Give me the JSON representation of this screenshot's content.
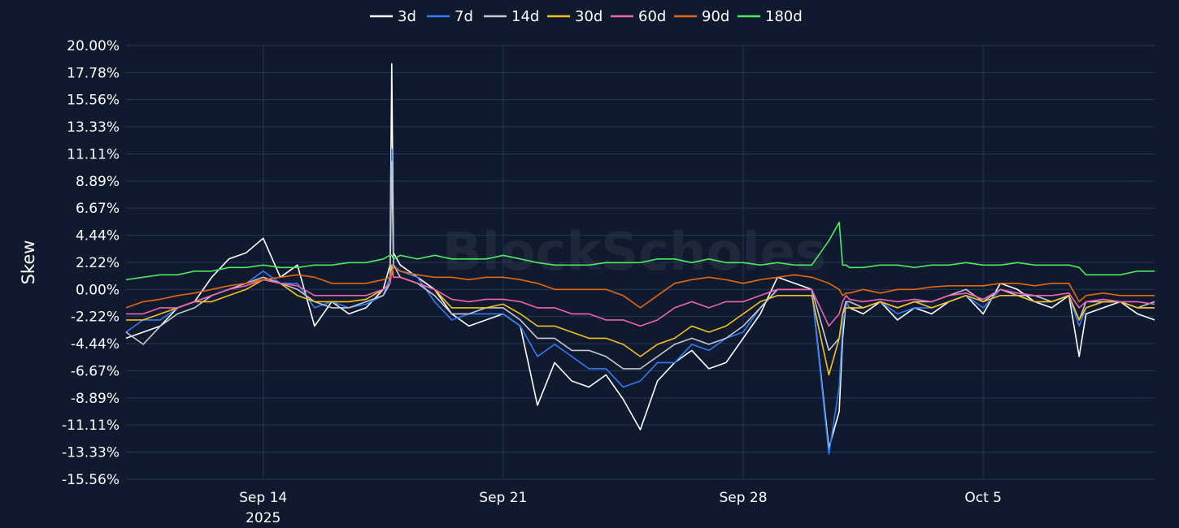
{
  "chart_data": {
    "type": "line",
    "title": "",
    "xlabel": "",
    "ylabel": "Skew",
    "watermark": "BlockScholes",
    "legend_position": "top-center",
    "grid": true,
    "background": "#0f1a2e",
    "x_start_day": 0,
    "x_end_day": 30,
    "x_ticks": [
      {
        "day": 4,
        "label": "Sep 14",
        "sublabel": "2025"
      },
      {
        "day": 11,
        "label": "Sep 21",
        "sublabel": ""
      },
      {
        "day": 18,
        "label": "Sep 28",
        "sublabel": ""
      },
      {
        "day": 25,
        "label": "Oct 5",
        "sublabel": ""
      }
    ],
    "y_ticks": [
      20.0,
      17.78,
      15.56,
      13.33,
      11.11,
      8.89,
      6.67,
      4.44,
      2.22,
      0.0,
      -2.22,
      -4.44,
      -6.67,
      -8.89,
      -11.11,
      -13.33,
      -15.56
    ],
    "y_tick_labels": [
      "20.00%",
      "17.78%",
      "15.56%",
      "13.33%",
      "11.11%",
      "8.89%",
      "6.67%",
      "4.44%",
      "2.22%",
      "0.00%",
      "-2.22%",
      "-4.44%",
      "-6.67%",
      "-8.89%",
      "-11.11%",
      "-13.33%",
      "-15.56%"
    ],
    "ylim": [
      -15.56,
      20.0
    ],
    "series": [
      {
        "name": "3d",
        "color": "#ffffff",
        "x": [
          0,
          0.5,
          1,
          1.5,
          2,
          2.5,
          3,
          3.5,
          4,
          4.5,
          5,
          5.5,
          6,
          6.5,
          7,
          7.5,
          7.7,
          7.75,
          7.8,
          8,
          8.5,
          9,
          9.5,
          10,
          10.5,
          11,
          11.5,
          12,
          12.5,
          13,
          13.5,
          14,
          14.5,
          15,
          15.5,
          16,
          16.5,
          17,
          17.5,
          18,
          18.5,
          19,
          19.5,
          20,
          20.5,
          20.8,
          20.9,
          21,
          21.1,
          21.5,
          22,
          22.5,
          23,
          23.5,
          24,
          24.5,
          25,
          25.5,
          26,
          26.5,
          27,
          27.5,
          27.8,
          28,
          28.5,
          29,
          29.5,
          30
        ],
        "values": [
          -4.0,
          -3.5,
          -3.0,
          -1.5,
          -1.0,
          1.0,
          2.5,
          3.0,
          4.2,
          1.0,
          2.0,
          -3.0,
          -1.0,
          -2.0,
          -1.5,
          0.0,
          2.0,
          18.5,
          3.0,
          2.0,
          1.0,
          0.0,
          -2.0,
          -3.0,
          -2.5,
          -2.0,
          -3.0,
          -9.5,
          -6.0,
          -7.5,
          -8.0,
          -7.0,
          -9.0,
          -11.5,
          -7.5,
          -6.0,
          -5.0,
          -6.5,
          -6.0,
          -4.0,
          -2.0,
          1.0,
          0.5,
          0.0,
          -13.0,
          -10.0,
          -4.0,
          -1.0,
          -1.5,
          -2.0,
          -1.0,
          -2.5,
          -1.5,
          -2.0,
          -1.0,
          -0.5,
          -2.0,
          0.5,
          0.0,
          -1.0,
          -1.5,
          -0.5,
          -5.5,
          -2.0,
          -1.5,
          -1.0,
          -2.0,
          -2.5
        ]
      },
      {
        "name": "7d",
        "color": "#2e7cf6",
        "x": [
          0,
          0.5,
          1,
          1.5,
          2,
          2.5,
          3,
          3.5,
          4,
          4.5,
          5,
          5.5,
          6,
          6.5,
          7,
          7.5,
          7.7,
          7.75,
          7.8,
          8,
          8.5,
          9,
          9.5,
          10,
          10.5,
          11,
          11.5,
          12,
          12.5,
          13,
          13.5,
          14,
          14.5,
          15,
          15.5,
          16,
          16.5,
          17,
          17.5,
          18,
          18.5,
          19,
          19.5,
          20,
          20.5,
          20.8,
          20.9,
          21,
          21.1,
          21.5,
          22,
          22.5,
          23,
          23.5,
          24,
          24.5,
          25,
          25.5,
          26,
          26.5,
          27,
          27.5,
          27.8,
          28,
          28.5,
          29,
          29.5,
          30
        ],
        "values": [
          -3.5,
          -2.5,
          -2.5,
          -1.5,
          -1.0,
          -0.5,
          0.0,
          0.5,
          1.5,
          0.5,
          0.5,
          -1.5,
          -1.0,
          -1.5,
          -1.2,
          -0.5,
          1.0,
          11.5,
          2.0,
          1.5,
          1.0,
          -1.0,
          -2.5,
          -2.0,
          -2.0,
          -2.0,
          -3.0,
          -5.5,
          -4.5,
          -5.5,
          -6.5,
          -6.5,
          -8.0,
          -7.5,
          -6.0,
          -6.0,
          -4.5,
          -5.0,
          -4.0,
          -3.5,
          -1.5,
          0.0,
          0.0,
          0.0,
          -13.5,
          -8.0,
          -3.0,
          -1.0,
          -1.5,
          -1.5,
          -1.0,
          -2.0,
          -1.5,
          -1.5,
          -1.0,
          -0.5,
          -1.5,
          0.0,
          -0.5,
          -1.0,
          -1.0,
          -0.5,
          -3.0,
          -1.5,
          -1.0,
          -1.0,
          -1.5,
          -1.5
        ]
      },
      {
        "name": "14d",
        "color": "#c5c8cf",
        "x": [
          0,
          0.5,
          1,
          1.5,
          2,
          2.5,
          3,
          3.5,
          4,
          4.5,
          5,
          5.5,
          6,
          6.5,
          7,
          7.5,
          7.7,
          7.75,
          7.8,
          8,
          8.5,
          9,
          9.5,
          10,
          10.5,
          11,
          11.5,
          12,
          12.5,
          13,
          13.5,
          14,
          14.5,
          15,
          15.5,
          16,
          16.5,
          17,
          17.5,
          18,
          18.5,
          19,
          19.5,
          20,
          20.5,
          20.8,
          20.9,
          21,
          21.1,
          21.5,
          22,
          22.5,
          23,
          23.5,
          24,
          24.5,
          25,
          25.5,
          26,
          26.5,
          27,
          27.5,
          27.8,
          28,
          28.5,
          29,
          29.5,
          30
        ],
        "values": [
          -3.5,
          -4.5,
          -3.0,
          -2.0,
          -1.5,
          -0.5,
          0.0,
          0.5,
          1.0,
          0.5,
          0.0,
          -1.0,
          -1.5,
          -1.5,
          -1.0,
          -0.5,
          0.5,
          10.5,
          2.0,
          1.0,
          0.5,
          -0.5,
          -2.0,
          -2.0,
          -1.5,
          -1.5,
          -2.5,
          -4.0,
          -4.0,
          -5.0,
          -5.0,
          -5.5,
          -6.5,
          -6.5,
          -5.5,
          -4.5,
          -4.0,
          -4.5,
          -4.0,
          -3.0,
          -1.5,
          0.0,
          0.0,
          0.0,
          -5.0,
          -4.0,
          -2.0,
          -1.0,
          -1.0,
          -1.5,
          -1.0,
          -1.5,
          -1.0,
          -1.0,
          -0.5,
          0.0,
          -1.0,
          0.0,
          -0.5,
          -0.5,
          -1.0,
          -0.5,
          -2.5,
          -1.0,
          -1.0,
          -1.0,
          -1.5,
          -1.0
        ]
      },
      {
        "name": "30d",
        "color": "#f5c11d",
        "x": [
          0,
          0.5,
          1,
          1.5,
          2,
          2.5,
          3,
          3.5,
          4,
          4.5,
          5,
          5.5,
          6,
          6.5,
          7,
          7.5,
          7.7,
          7.75,
          7.8,
          8,
          8.5,
          9,
          9.5,
          10,
          10.5,
          11,
          11.5,
          12,
          12.5,
          13,
          13.5,
          14,
          14.5,
          15,
          15.5,
          16,
          16.5,
          17,
          17.5,
          18,
          18.5,
          19,
          19.5,
          20,
          20.5,
          20.8,
          20.9,
          21,
          21.1,
          21.5,
          22,
          22.5,
          23,
          23.5,
          24,
          24.5,
          25,
          25.5,
          26,
          26.5,
          27,
          27.5,
          27.8,
          28,
          28.5,
          29,
          29.5,
          30
        ],
        "values": [
          -2.5,
          -2.5,
          -2.0,
          -1.5,
          -1.0,
          -1.0,
          -0.5,
          0.0,
          0.8,
          0.5,
          -0.5,
          -1.0,
          -1.0,
          -1.0,
          -0.8,
          0.0,
          0.5,
          2.0,
          1.0,
          1.0,
          0.5,
          0.0,
          -1.5,
          -1.5,
          -1.5,
          -1.2,
          -2.0,
          -3.0,
          -3.0,
          -3.5,
          -4.0,
          -4.0,
          -4.5,
          -5.5,
          -4.5,
          -4.0,
          -3.0,
          -3.5,
          -3.0,
          -2.0,
          -1.0,
          -0.5,
          -0.5,
          -0.5,
          -7.0,
          -4.0,
          -2.0,
          -1.5,
          -1.5,
          -1.5,
          -1.0,
          -1.5,
          -1.0,
          -1.5,
          -1.0,
          -0.5,
          -1.0,
          -0.5,
          -0.5,
          -1.0,
          -1.0,
          -0.5,
          -2.5,
          -1.5,
          -1.0,
          -1.0,
          -1.5,
          -1.5
        ]
      },
      {
        "name": "60d",
        "color": "#f062b4",
        "x": [
          0,
          0.5,
          1,
          1.5,
          2,
          2.5,
          3,
          3.5,
          4,
          4.5,
          5,
          5.5,
          6,
          6.5,
          7,
          7.5,
          7.7,
          7.75,
          7.8,
          8,
          8.5,
          9,
          9.5,
          10,
          10.5,
          11,
          11.5,
          12,
          12.5,
          13,
          13.5,
          14,
          14.5,
          15,
          15.5,
          16,
          16.5,
          17,
          17.5,
          18,
          18.5,
          19,
          19.5,
          20,
          20.5,
          20.8,
          20.9,
          21,
          21.1,
          21.5,
          22,
          22.5,
          23,
          23.5,
          24,
          24.5,
          25,
          25.5,
          26,
          26.5,
          27,
          27.5,
          27.8,
          28,
          28.5,
          29,
          29.5,
          30
        ],
        "values": [
          -2.0,
          -2.0,
          -1.5,
          -1.5,
          -1.0,
          -0.5,
          0.0,
          0.3,
          0.8,
          0.5,
          0.3,
          -0.5,
          -0.5,
          -0.5,
          -0.5,
          0.0,
          0.5,
          1.5,
          1.0,
          1.0,
          0.5,
          0.0,
          -0.8,
          -1.0,
          -0.8,
          -0.8,
          -1.0,
          -1.5,
          -1.5,
          -2.0,
          -2.0,
          -2.5,
          -2.5,
          -3.0,
          -2.5,
          -1.5,
          -1.0,
          -1.5,
          -1.0,
          -1.0,
          -0.5,
          0.0,
          0.0,
          0.0,
          -3.0,
          -2.0,
          -1.0,
          -0.5,
          -0.8,
          -1.0,
          -0.8,
          -1.0,
          -0.8,
          -1.0,
          -0.5,
          -0.3,
          -0.8,
          0.0,
          -0.3,
          -0.5,
          -0.5,
          -0.3,
          -1.5,
          -1.0,
          -0.8,
          -1.0,
          -1.0,
          -1.2
        ]
      },
      {
        "name": "90d",
        "color": "#e2670f",
        "x": [
          0,
          0.5,
          1,
          1.5,
          2,
          2.5,
          3,
          3.5,
          4,
          4.5,
          5,
          5.5,
          6,
          6.5,
          7,
          7.5,
          7.7,
          7.75,
          7.8,
          8,
          8.5,
          9,
          9.5,
          10,
          10.5,
          11,
          11.5,
          12,
          12.5,
          13,
          13.5,
          14,
          14.5,
          15,
          15.5,
          16,
          16.5,
          17,
          17.5,
          18,
          18.5,
          19,
          19.5,
          20,
          20.5,
          20.8,
          20.9,
          21,
          21.1,
          21.5,
          22,
          22.5,
          23,
          23.5,
          24,
          24.5,
          25,
          25.5,
          26,
          26.5,
          27,
          27.5,
          27.8,
          28,
          28.5,
          29,
          29.5,
          30
        ],
        "values": [
          -1.5,
          -1.0,
          -0.8,
          -0.5,
          -0.3,
          0.0,
          0.3,
          0.5,
          0.8,
          1.0,
          1.2,
          1.0,
          0.5,
          0.5,
          0.5,
          0.8,
          1.0,
          1.5,
          1.8,
          1.5,
          1.2,
          1.0,
          1.0,
          0.8,
          1.0,
          1.0,
          0.8,
          0.5,
          0.0,
          0.0,
          0.0,
          0.0,
          -0.5,
          -1.5,
          -0.5,
          0.5,
          0.8,
          1.0,
          0.8,
          0.5,
          0.8,
          1.0,
          1.2,
          1.0,
          0.5,
          0.0,
          -0.5,
          -0.3,
          -0.3,
          0.0,
          -0.3,
          0.0,
          0.0,
          0.2,
          0.3,
          0.3,
          0.3,
          0.5,
          0.5,
          0.3,
          0.5,
          0.5,
          -1.0,
          -0.5,
          -0.3,
          -0.5,
          -0.5,
          -0.5
        ]
      },
      {
        "name": "180d",
        "color": "#4ce85f",
        "x": [
          0,
          0.5,
          1,
          1.5,
          2,
          2.5,
          3,
          3.5,
          4,
          4.5,
          5,
          5.5,
          6,
          6.5,
          7,
          7.5,
          7.7,
          7.75,
          7.8,
          8,
          8.5,
          9,
          9.5,
          10,
          10.5,
          11,
          11.5,
          12,
          12.5,
          13,
          13.5,
          14,
          14.5,
          15,
          15.5,
          16,
          16.5,
          17,
          17.5,
          18,
          18.5,
          19,
          19.5,
          20,
          20.5,
          20.8,
          20.9,
          21,
          21.1,
          21.5,
          22,
          22.5,
          23,
          23.5,
          24,
          24.5,
          25,
          25.5,
          26,
          26.5,
          27,
          27.5,
          27.8,
          28,
          28.5,
          29,
          29.5,
          30
        ],
        "values": [
          0.8,
          1.0,
          1.2,
          1.2,
          1.5,
          1.5,
          1.8,
          1.8,
          2.0,
          1.8,
          1.8,
          2.0,
          2.0,
          2.2,
          2.2,
          2.5,
          2.8,
          2.8,
          2.5,
          2.8,
          2.5,
          2.8,
          2.5,
          2.5,
          2.5,
          2.8,
          2.5,
          2.2,
          2.0,
          2.0,
          2.0,
          2.2,
          2.2,
          2.2,
          2.5,
          2.5,
          2.2,
          2.5,
          2.2,
          2.2,
          2.0,
          2.2,
          2.0,
          2.0,
          4.0,
          5.5,
          2.0,
          2.0,
          1.8,
          1.8,
          2.0,
          2.0,
          1.8,
          2.0,
          2.0,
          2.2,
          2.0,
          2.0,
          2.2,
          2.0,
          2.0,
          2.0,
          1.8,
          1.2,
          1.2,
          1.2,
          1.5,
          1.5
        ]
      }
    ]
  }
}
